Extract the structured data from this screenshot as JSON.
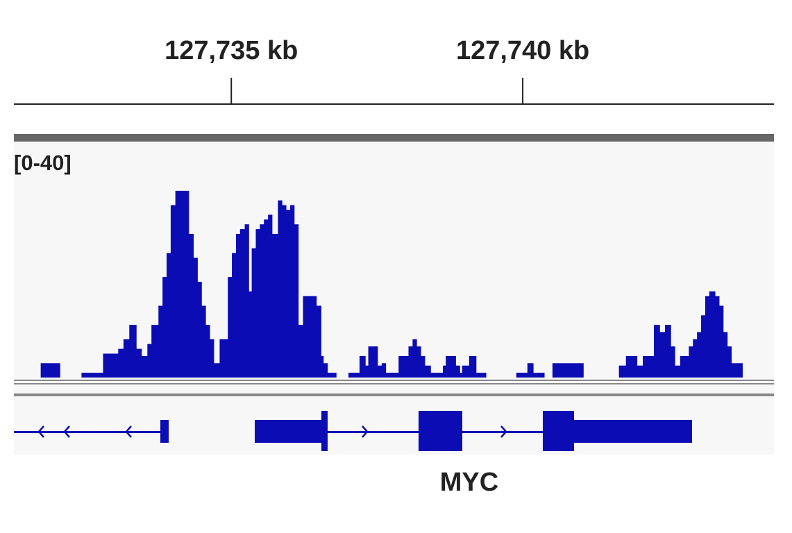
{
  "chart_data": {
    "type": "histogram",
    "data_range": "[0-40]",
    "gene": "MYC",
    "color": "#0c0cb4",
    "xlim": [
      127731.27,
      127744.31
    ],
    "xticks": [
      {
        "value": 127735,
        "label": "127,735 kb"
      },
      {
        "value": 127740,
        "label": "127,740 kb"
      }
    ],
    "ylim": [
      0,
      40
    ],
    "bins": [
      127731.27,
      127731.73,
      127732.06,
      127732.43,
      127732.8,
      127733.06,
      127733.15,
      127733.25,
      127733.37,
      127733.46,
      127733.56,
      127733.63,
      127733.75,
      127733.82,
      127733.89,
      127733.96,
      127734.04,
      127734.27,
      127734.35,
      127734.42,
      127734.49,
      127734.56,
      127734.63,
      127734.7,
      127734.8,
      127734.94,
      127735.01,
      127735.08,
      127735.15,
      127735.23,
      127735.3,
      127735.35,
      127735.42,
      127735.49,
      127735.56,
      127735.63,
      127735.7,
      127735.8,
      127735.87,
      127735.94,
      127736.01,
      127736.08,
      127736.15,
      127736.23,
      127736.46,
      127736.54,
      127736.58,
      127736.65,
      127736.8,
      127737.01,
      127737.2,
      127737.3,
      127737.35,
      127737.51,
      127737.58,
      127737.65,
      127737.87,
      127738.04,
      127738.11,
      127738.18,
      127738.25,
      127738.32,
      127738.42,
      127738.63,
      127738.68,
      127738.85,
      127738.92,
      127738.96,
      127739.08,
      127739.2,
      127739.37,
      127739.89,
      127740.08,
      127740.18,
      127740.37,
      127740.51,
      127741.04,
      127741.65,
      127741.77,
      127741.96,
      127742.06,
      127742.25,
      127742.35,
      127742.44,
      127742.54,
      127742.61,
      127742.7,
      127742.85,
      127742.92,
      127742.99,
      127743.06,
      127743.13,
      127743.2,
      127743.3,
      127743.37,
      127743.44,
      127743.51,
      127743.58,
      127743.77,
      127744.31
    ],
    "values": [
      0,
      3,
      0,
      1,
      5,
      6,
      8,
      11,
      6,
      4.5,
      7,
      11,
      15,
      21,
      26,
      36,
      39,
      30,
      25,
      20,
      15,
      11,
      8,
      3,
      8,
      21,
      26,
      30,
      31,
      32,
      18,
      27,
      31,
      32,
      33,
      34,
      30,
      37,
      36,
      35,
      36,
      32,
      11,
      17,
      15,
      4.5,
      3,
      1,
      0,
      1,
      4.5,
      2.5,
      6.5,
      2.5,
      3,
      1,
      4.5,
      6.5,
      8,
      6.5,
      4.5,
      2.5,
      1,
      2.5,
      4.5,
      2.5,
      1,
      2.5,
      4.5,
      1,
      0,
      1,
      3,
      1,
      0,
      3,
      0,
      2.5,
      4.5,
      2.5,
      4.5,
      11,
      9.5,
      11,
      6.5,
      2.5,
      4.5,
      6.5,
      8,
      9.5,
      13,
      17,
      18,
      17,
      15,
      9.5,
      6.5,
      3,
      0
    ]
  }
}
